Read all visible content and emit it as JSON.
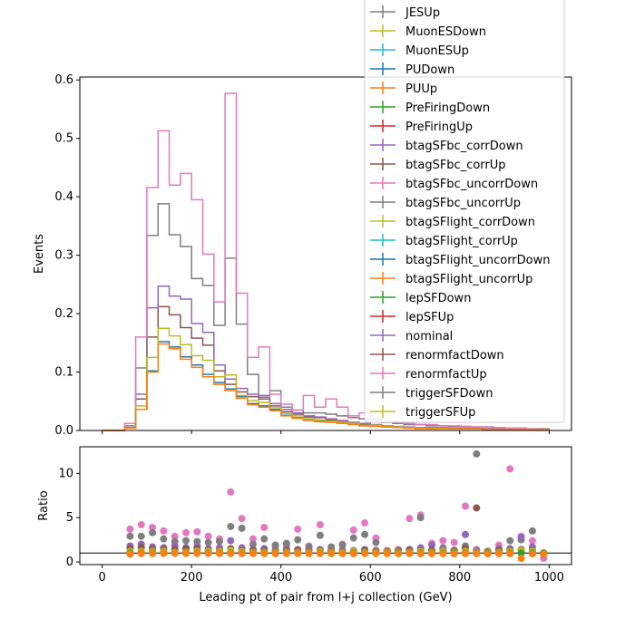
{
  "chart_data": [
    {
      "type": "step",
      "xlabel": "",
      "ylabel": "Events",
      "xlim": [
        -50,
        1050
      ],
      "ylim": [
        0,
        0.605
      ],
      "x_ticks": [
        0,
        200,
        400,
        600,
        800,
        1000
      ],
      "y_ticks": [
        0.0,
        0.1,
        0.2,
        0.3,
        0.4,
        0.5,
        0.6
      ],
      "y_tick_labels": [
        "0.0",
        "0.1",
        "0.2",
        "0.3",
        "0.4",
        "0.5",
        "0.6"
      ],
      "bin_edges": [
        0,
        25,
        50,
        75,
        100,
        125,
        150,
        175,
        200,
        225,
        250,
        275,
        300,
        325,
        350,
        375,
        400,
        425,
        450,
        475,
        500,
        525,
        550,
        575,
        600,
        625,
        650,
        675,
        700,
        725,
        750,
        775,
        800,
        825,
        850,
        875,
        900,
        925,
        950,
        975,
        1000
      ],
      "legend_position": "upper right",
      "legend": [
        {
          "name": "JESUp",
          "color": "#7f7f7f"
        },
        {
          "name": "MuonESDown",
          "color": "#bcbd22"
        },
        {
          "name": "MuonESUp",
          "color": "#17becf"
        },
        {
          "name": "PUDown",
          "color": "#1f77b4"
        },
        {
          "name": "PUUp",
          "color": "#ff7f0e"
        },
        {
          "name": "PreFiringDown",
          "color": "#2ca02c"
        },
        {
          "name": "PreFiringUp",
          "color": "#d62728"
        },
        {
          "name": "btagSFbc_corrDown",
          "color": "#9467bd"
        },
        {
          "name": "btagSFbc_corrUp",
          "color": "#8c564b"
        },
        {
          "name": "btagSFbc_uncorrDown",
          "color": "#e377c2"
        },
        {
          "name": "btagSFbc_uncorrUp",
          "color": "#7f7f7f"
        },
        {
          "name": "btagSFlight_corrDown",
          "color": "#bcbd22"
        },
        {
          "name": "btagSFlight_corrUp",
          "color": "#17becf"
        },
        {
          "name": "btagSFlight_uncorrDown",
          "color": "#1f77b4"
        },
        {
          "name": "btagSFlight_uncorrUp",
          "color": "#ff7f0e"
        },
        {
          "name": "lepSFDown",
          "color": "#2ca02c"
        },
        {
          "name": "lepSFUp",
          "color": "#d62728"
        },
        {
          "name": "nominal",
          "color": "#9467bd"
        },
        {
          "name": "renormfactDown",
          "color": "#8c564b"
        },
        {
          "name": "renormfactUp",
          "color": "#e377c2"
        },
        {
          "name": "triggerSFDown",
          "color": "#7f7f7f"
        },
        {
          "name": "triggerSFUp",
          "color": "#bcbd22"
        }
      ],
      "series": [
        {
          "color": "#1f77b4",
          "values": [
            0,
            0,
            0.004,
            0.036,
            0.102,
            0.152,
            0.143,
            0.126,
            0.112,
            0.096,
            0.082,
            0.071,
            0.058,
            0.046,
            0.042,
            0.036,
            0.026,
            0.022,
            0.018,
            0.016,
            0.015,
            0.013,
            0.011,
            0.008,
            0.008,
            0.006,
            0.005,
            0.004,
            0.004,
            0.003,
            0.004,
            0.003,
            0.003,
            0.003,
            0.002,
            0.002,
            0.002,
            0.002,
            0.001,
            0.001
          ]
        },
        {
          "color": "#8c564b",
          "values": [
            0,
            0,
            0.005,
            0.054,
            0.16,
            0.212,
            0.198,
            0.176,
            0.158,
            0.146,
            0.102,
            0.079,
            0.066,
            0.058,
            0.054,
            0.042,
            0.032,
            0.028,
            0.023,
            0.022,
            0.018,
            0.015,
            0.012,
            0.01,
            0.009,
            0.007,
            0.006,
            0.005,
            0.005,
            0.004,
            0.004,
            0.004,
            0.004,
            0.004,
            0.003,
            0.003,
            0.002,
            0.002,
            0.002,
            0.001
          ]
        },
        {
          "color": "#9467bd",
          "values": [
            0,
            0,
            0.005,
            0.062,
            0.21,
            0.247,
            0.23,
            0.225,
            0.183,
            0.168,
            0.112,
            0.088,
            0.072,
            0.062,
            0.057,
            0.046,
            0.036,
            0.03,
            0.025,
            0.023,
            0.02,
            0.017,
            0.014,
            0.012,
            0.01,
            0.008,
            0.007,
            0.006,
            0.005,
            0.005,
            0.005,
            0.004,
            0.004,
            0.004,
            0.003,
            0.003,
            0.003,
            0.002,
            0.002,
            0.002
          ]
        },
        {
          "color": "#7f7f7f",
          "values": [
            0,
            0,
            0.008,
            0.107,
            0.334,
            0.388,
            0.335,
            0.315,
            0.26,
            0.248,
            0.18,
            0.295,
            0.182,
            0.096,
            0.06,
            0.068,
            0.04,
            0.035,
            0.03,
            0.03,
            0.028,
            0.025,
            0.022,
            0.02,
            0.018,
            0.014,
            0.012,
            0.01,
            0.01,
            0.008,
            0.008,
            0.007,
            0.007,
            0.006,
            0.006,
            0.005,
            0.004,
            0.004,
            0.003,
            0.003
          ]
        },
        {
          "color": "#e377c2",
          "values": [
            0,
            0,
            0.012,
            0.16,
            0.416,
            0.513,
            0.42,
            0.44,
            0.395,
            0.302,
            0.22,
            0.577,
            0.235,
            0.125,
            0.143,
            0.062,
            0.045,
            0.035,
            0.06,
            0.04,
            0.054,
            0.04,
            0.025,
            0.03,
            0.02,
            0.015,
            0.014,
            0.012,
            0.01,
            0.01,
            0.008,
            0.008,
            0.007,
            0.006,
            0.006,
            0.005,
            0.004,
            0.004,
            0.003,
            0.002
          ]
        },
        {
          "color": "#bcbd22",
          "values": [
            0,
            0,
            0.004,
            0.042,
            0.125,
            0.175,
            0.162,
            0.147,
            0.128,
            0.12,
            0.092,
            0.095,
            0.06,
            0.051,
            0.048,
            0.039,
            0.029,
            0.025,
            0.02,
            0.018,
            0.016,
            0.014,
            0.012,
            0.009,
            0.009,
            0.007,
            0.006,
            0.005,
            0.004,
            0.004,
            0.004,
            0.003,
            0.003,
            0.003,
            0.002,
            0.002,
            0.002,
            0.002,
            0.001,
            0.001
          ]
        },
        {
          "color": "#ff7f0e",
          "values": [
            0,
            0,
            0.004,
            0.036,
            0.1,
            0.148,
            0.14,
            0.122,
            0.108,
            0.092,
            0.079,
            0.068,
            0.055,
            0.044,
            0.04,
            0.034,
            0.025,
            0.021,
            0.017,
            0.015,
            0.014,
            0.012,
            0.01,
            0.008,
            0.007,
            0.006,
            0.005,
            0.004,
            0.003,
            0.003,
            0.003,
            0.003,
            0.003,
            0.003,
            0.002,
            0.002,
            0.002,
            0.002,
            0.001,
            0.001
          ]
        }
      ]
    },
    {
      "type": "scatter",
      "xlabel": "Leading pt of pair from l+j collection (GeV)",
      "ylabel": "Ratio",
      "xlim": [
        -50,
        1050
      ],
      "ylim": [
        -0.3,
        13.0
      ],
      "x_ticks": [
        0,
        200,
        400,
        600,
        800,
        1000
      ],
      "y_ticks": [
        0,
        5,
        10
      ],
      "reference_line": 1.0,
      "series": [
        {
          "color": "#e377c2",
          "x": [
            62.5,
            87.5,
            112.5,
            137.5,
            162.5,
            187.5,
            212.5,
            237.5,
            262.5,
            287.5,
            312.5,
            337.5,
            362.5,
            387.5,
            412.5,
            437.5,
            462.5,
            487.5,
            512.5,
            537.5,
            562.5,
            587.5,
            612.5,
            637.5,
            662.5,
            687.5,
            712.5,
            737.5,
            762.5,
            787.5,
            812.5,
            837.5,
            862.5,
            887.5,
            912.5,
            937.5,
            962.5,
            987.5
          ],
          "y": [
            3.7,
            4.2,
            3.9,
            3.5,
            2.9,
            3.3,
            3.4,
            2.9,
            2.6,
            7.9,
            4.9,
            2.6,
            3.9,
            1.7,
            1.8,
            3.7,
            1.8,
            4.2,
            1.5,
            2.0,
            3.6,
            4.4,
            2.7,
            1.3,
            1.4,
            4.9,
            5.3,
            2.1,
            2.4,
            2.2,
            6.3,
            1.4,
            1.2,
            1.9,
            10.5,
            2.9,
            2.4,
            0.4
          ]
        },
        {
          "color": "#7f7f7f",
          "x": [
            62.5,
            87.5,
            112.5,
            137.5,
            162.5,
            187.5,
            212.5,
            237.5,
            262.5,
            287.5,
            312.5,
            337.5,
            362.5,
            387.5,
            412.5,
            437.5,
            462.5,
            487.5,
            512.5,
            537.5,
            562.5,
            587.5,
            612.5,
            637.5,
            662.5,
            687.5,
            712.5,
            737.5,
            762.5,
            787.5,
            812.5,
            837.5,
            862.5,
            887.5,
            912.5,
            937.5,
            962.5,
            987.5
          ],
          "y": [
            2.9,
            2.9,
            3.3,
            2.6,
            2.3,
            2.4,
            2.3,
            2.2,
            2.3,
            4.0,
            3.8,
            2.0,
            2.6,
            1.9,
            2.1,
            2.5,
            1.7,
            3.0,
            1.7,
            1.9,
            2.7,
            3.1,
            2.2,
            1.1,
            1.3,
            1.4,
            5.0,
            1.3,
            1.6,
            1.3,
            1.8,
            12.2,
            1.1,
            1.5,
            2.4,
            2.5,
            3.5,
            0.9
          ]
        },
        {
          "color": "#9467bd",
          "x": [
            62.5,
            87.5,
            112.5,
            137.5,
            162.5,
            187.5,
            212.5,
            237.5,
            262.5,
            287.5,
            312.5,
            337.5,
            362.5,
            387.5,
            412.5,
            437.5,
            462.5,
            487.5,
            512.5,
            537.5,
            562.5,
            587.5,
            612.5,
            637.5,
            662.5,
            687.5,
            712.5,
            737.5,
            762.5,
            787.5,
            812.5,
            837.5,
            862.5,
            887.5,
            912.5,
            937.5,
            962.5,
            987.5
          ],
          "y": [
            1.8,
            2.0,
            1.7,
            1.6,
            1.8,
            1.6,
            1.8,
            1.5,
            1.6,
            2.4,
            1.6,
            1.4,
            1.5,
            1.3,
            1.4,
            1.4,
            1.4,
            1.4,
            1.3,
            1.3,
            1.3,
            1.4,
            1.3,
            1.2,
            1.2,
            1.4,
            1.6,
            1.9,
            1.4,
            1.3,
            3.1,
            1.3,
            1.1,
            1.4,
            1.5,
            2.8,
            1.7,
            1.0
          ]
        },
        {
          "color": "#8c564b",
          "x": [
            62.5,
            87.5,
            112.5,
            137.5,
            162.5,
            187.5,
            212.5,
            237.5,
            262.5,
            287.5,
            312.5,
            337.5,
            362.5,
            387.5,
            412.5,
            437.5,
            462.5,
            487.5,
            512.5,
            537.5,
            562.5,
            587.5,
            612.5,
            637.5,
            662.5,
            687.5,
            712.5,
            737.5,
            762.5,
            787.5,
            812.5,
            837.5,
            862.5,
            887.5,
            912.5,
            937.5,
            962.5,
            987.5
          ],
          "y": [
            1.5,
            1.6,
            1.4,
            1.4,
            1.4,
            1.5,
            1.5,
            1.3,
            1.3,
            1.5,
            1.3,
            1.3,
            1.3,
            1.2,
            1.3,
            1.3,
            1.2,
            1.3,
            1.2,
            1.2,
            1.2,
            1.3,
            1.2,
            1.2,
            1.2,
            1.3,
            1.3,
            1.3,
            1.2,
            1.3,
            1.5,
            6.1,
            1.2,
            1.3,
            1.3,
            1.4,
            1.3,
            1.0
          ]
        },
        {
          "color": "#bcbd22",
          "x": [
            62.5,
            87.5,
            112.5,
            137.5,
            162.5,
            187.5,
            212.5,
            237.5,
            262.5,
            287.5,
            312.5,
            337.5,
            362.5,
            387.5,
            412.5,
            437.5,
            462.5,
            487.5,
            512.5,
            537.5,
            562.5,
            587.5,
            612.5,
            637.5,
            662.5,
            687.5,
            712.5,
            737.5,
            762.5,
            787.5,
            812.5,
            837.5,
            862.5,
            887.5,
            912.5,
            937.5,
            962.5,
            987.5
          ],
          "y": [
            1.2,
            1.2,
            1.2,
            1.2,
            1.1,
            1.1,
            1.2,
            1.2,
            1.2,
            1.3,
            1.2,
            1.1,
            1.1,
            1.1,
            1.1,
            1.1,
            1.1,
            1.2,
            1.1,
            1.1,
            1.2,
            1.1,
            1.1,
            1.1,
            1.1,
            1.1,
            1.2,
            1.1,
            1.2,
            1.1,
            1.2,
            1.1,
            1.1,
            1.1,
            1.2,
            1.3,
            1.2,
            1.0
          ]
        },
        {
          "color": "#2ca02c",
          "x": [
            62.5,
            87.5,
            112.5,
            137.5,
            162.5,
            187.5,
            212.5,
            237.5,
            262.5,
            287.5,
            312.5,
            337.5,
            362.5,
            387.5,
            412.5,
            437.5,
            462.5,
            487.5,
            512.5,
            537.5,
            562.5,
            587.5,
            612.5,
            637.5,
            662.5,
            687.5,
            712.5,
            737.5,
            762.5,
            787.5,
            812.5,
            837.5,
            862.5,
            887.5,
            912.5,
            937.5,
            962.5,
            987.5
          ],
          "y": [
            1.0,
            1.0,
            1.0,
            1.0,
            1.0,
            1.0,
            1.0,
            1.0,
            1.0,
            1.0,
            1.0,
            1.0,
            1.0,
            1.0,
            1.0,
            1.0,
            1.0,
            1.0,
            1.0,
            1.0,
            1.0,
            1.0,
            1.0,
            1.0,
            1.0,
            1.0,
            1.0,
            1.0,
            1.0,
            1.0,
            1.0,
            1.0,
            1.0,
            1.0,
            1.0,
            1.0,
            1.0,
            1.0
          ]
        },
        {
          "color": "#ff7f0e",
          "x": [
            62.5,
            87.5,
            112.5,
            137.5,
            162.5,
            187.5,
            212.5,
            237.5,
            262.5,
            287.5,
            312.5,
            337.5,
            362.5,
            387.5,
            412.5,
            437.5,
            462.5,
            487.5,
            512.5,
            537.5,
            562.5,
            587.5,
            612.5,
            637.5,
            662.5,
            687.5,
            712.5,
            737.5,
            762.5,
            787.5,
            812.5,
            837.5,
            862.5,
            887.5,
            912.5,
            937.5,
            962.5,
            987.5
          ],
          "y": [
            0.9,
            0.95,
            0.95,
            0.97,
            0.97,
            0.96,
            0.96,
            0.96,
            0.95,
            0.95,
            0.95,
            0.95,
            0.95,
            0.94,
            0.95,
            0.95,
            0.94,
            0.95,
            0.95,
            0.94,
            0.94,
            0.95,
            0.94,
            0.95,
            0.93,
            0.95,
            0.94,
            0.94,
            0.93,
            0.92,
            0.95,
            0.94,
            0.92,
            0.94,
            0.93,
            0.4,
            0.92,
            0.9
          ]
        }
      ]
    }
  ]
}
